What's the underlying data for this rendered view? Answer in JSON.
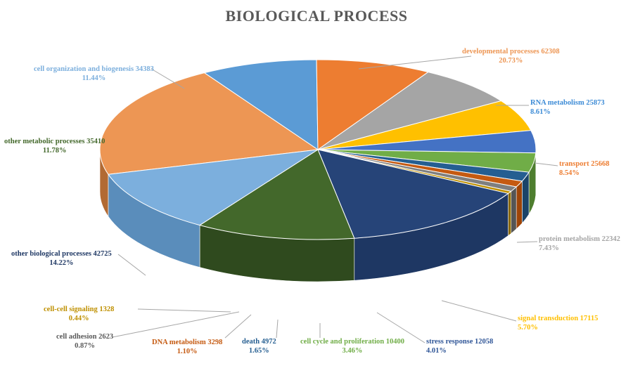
{
  "chart_data": {
    "type": "pie",
    "title": "BIOLOGICAL PROCESS",
    "slices": [
      {
        "label": "developmental processes",
        "value": 62308,
        "percent": "20.73%",
        "color": "#ED9654",
        "side": "#B26A33",
        "lblcolor": "#ED9654"
      },
      {
        "label": "RNA metabolism",
        "value": 25873,
        "percent": "8.61%",
        "color": "#5B9BD5",
        "side": "#3F73A3",
        "lblcolor": "#3C8BD6"
      },
      {
        "label": "transport",
        "value": 25668,
        "percent": "8.54%",
        "color": "#ED7D31",
        "side": "#B55A1F",
        "lblcolor": "#ED7D31"
      },
      {
        "label": "protein metabolism",
        "value": 22342,
        "percent": "7.43%",
        "color": "#A5A5A5",
        "side": "#474747",
        "lblcolor": "#A5A5A5"
      },
      {
        "label": "signal transduction",
        "value": 17115,
        "percent": "5.70%",
        "color": "#FFC000",
        "side": "#7A5C00",
        "lblcolor": "#FFC000"
      },
      {
        "label": "stress response",
        "value": 12058,
        "percent": "4.01%",
        "color": "#4472C4",
        "side": "#263F73",
        "lblcolor": "#2F5597"
      },
      {
        "label": "cell cycle and proliferation",
        "value": 10400,
        "percent": "3.46%",
        "color": "#70AD47",
        "side": "#4E7E2F",
        "lblcolor": "#70AD47"
      },
      {
        "label": "death",
        "value": 4972,
        "percent": "1.65%",
        "color": "#255E91",
        "side": "#1A4469",
        "lblcolor": "#255E91"
      },
      {
        "label": "DNA metabolism",
        "value": 3298,
        "percent": "1.10%",
        "color": "#C55A11",
        "side": "#9E4407",
        "lblcolor": "#C55A11"
      },
      {
        "label": "cell adhesion",
        "value": 2623,
        "percent": "0.87%",
        "color": "#7F7F7F",
        "side": "#555555",
        "lblcolor": "#595959"
      },
      {
        "label": "cell-cell signaling",
        "value": 1328,
        "percent": "0.44%",
        "color": "#BF9000",
        "side": "#8C6A00",
        "lblcolor": "#BF9000"
      },
      {
        "label": "other biological processes",
        "value": 42725,
        "percent": "14.22%",
        "color": "#264478",
        "side": "#1E3763",
        "lblcolor": "#1F3864"
      },
      {
        "label": "other metabolic processes",
        "value": 35410,
        "percent": "11.78%",
        "color": "#43682B",
        "side": "#2F4A1E",
        "lblcolor": "#43682B"
      },
      {
        "label": "cell organization and biogenesis",
        "value": 34383,
        "percent": "11.44%",
        "color": "#7CAFDD",
        "side": "#5A8DBB",
        "lblcolor": "#7CAFDD"
      }
    ]
  }
}
